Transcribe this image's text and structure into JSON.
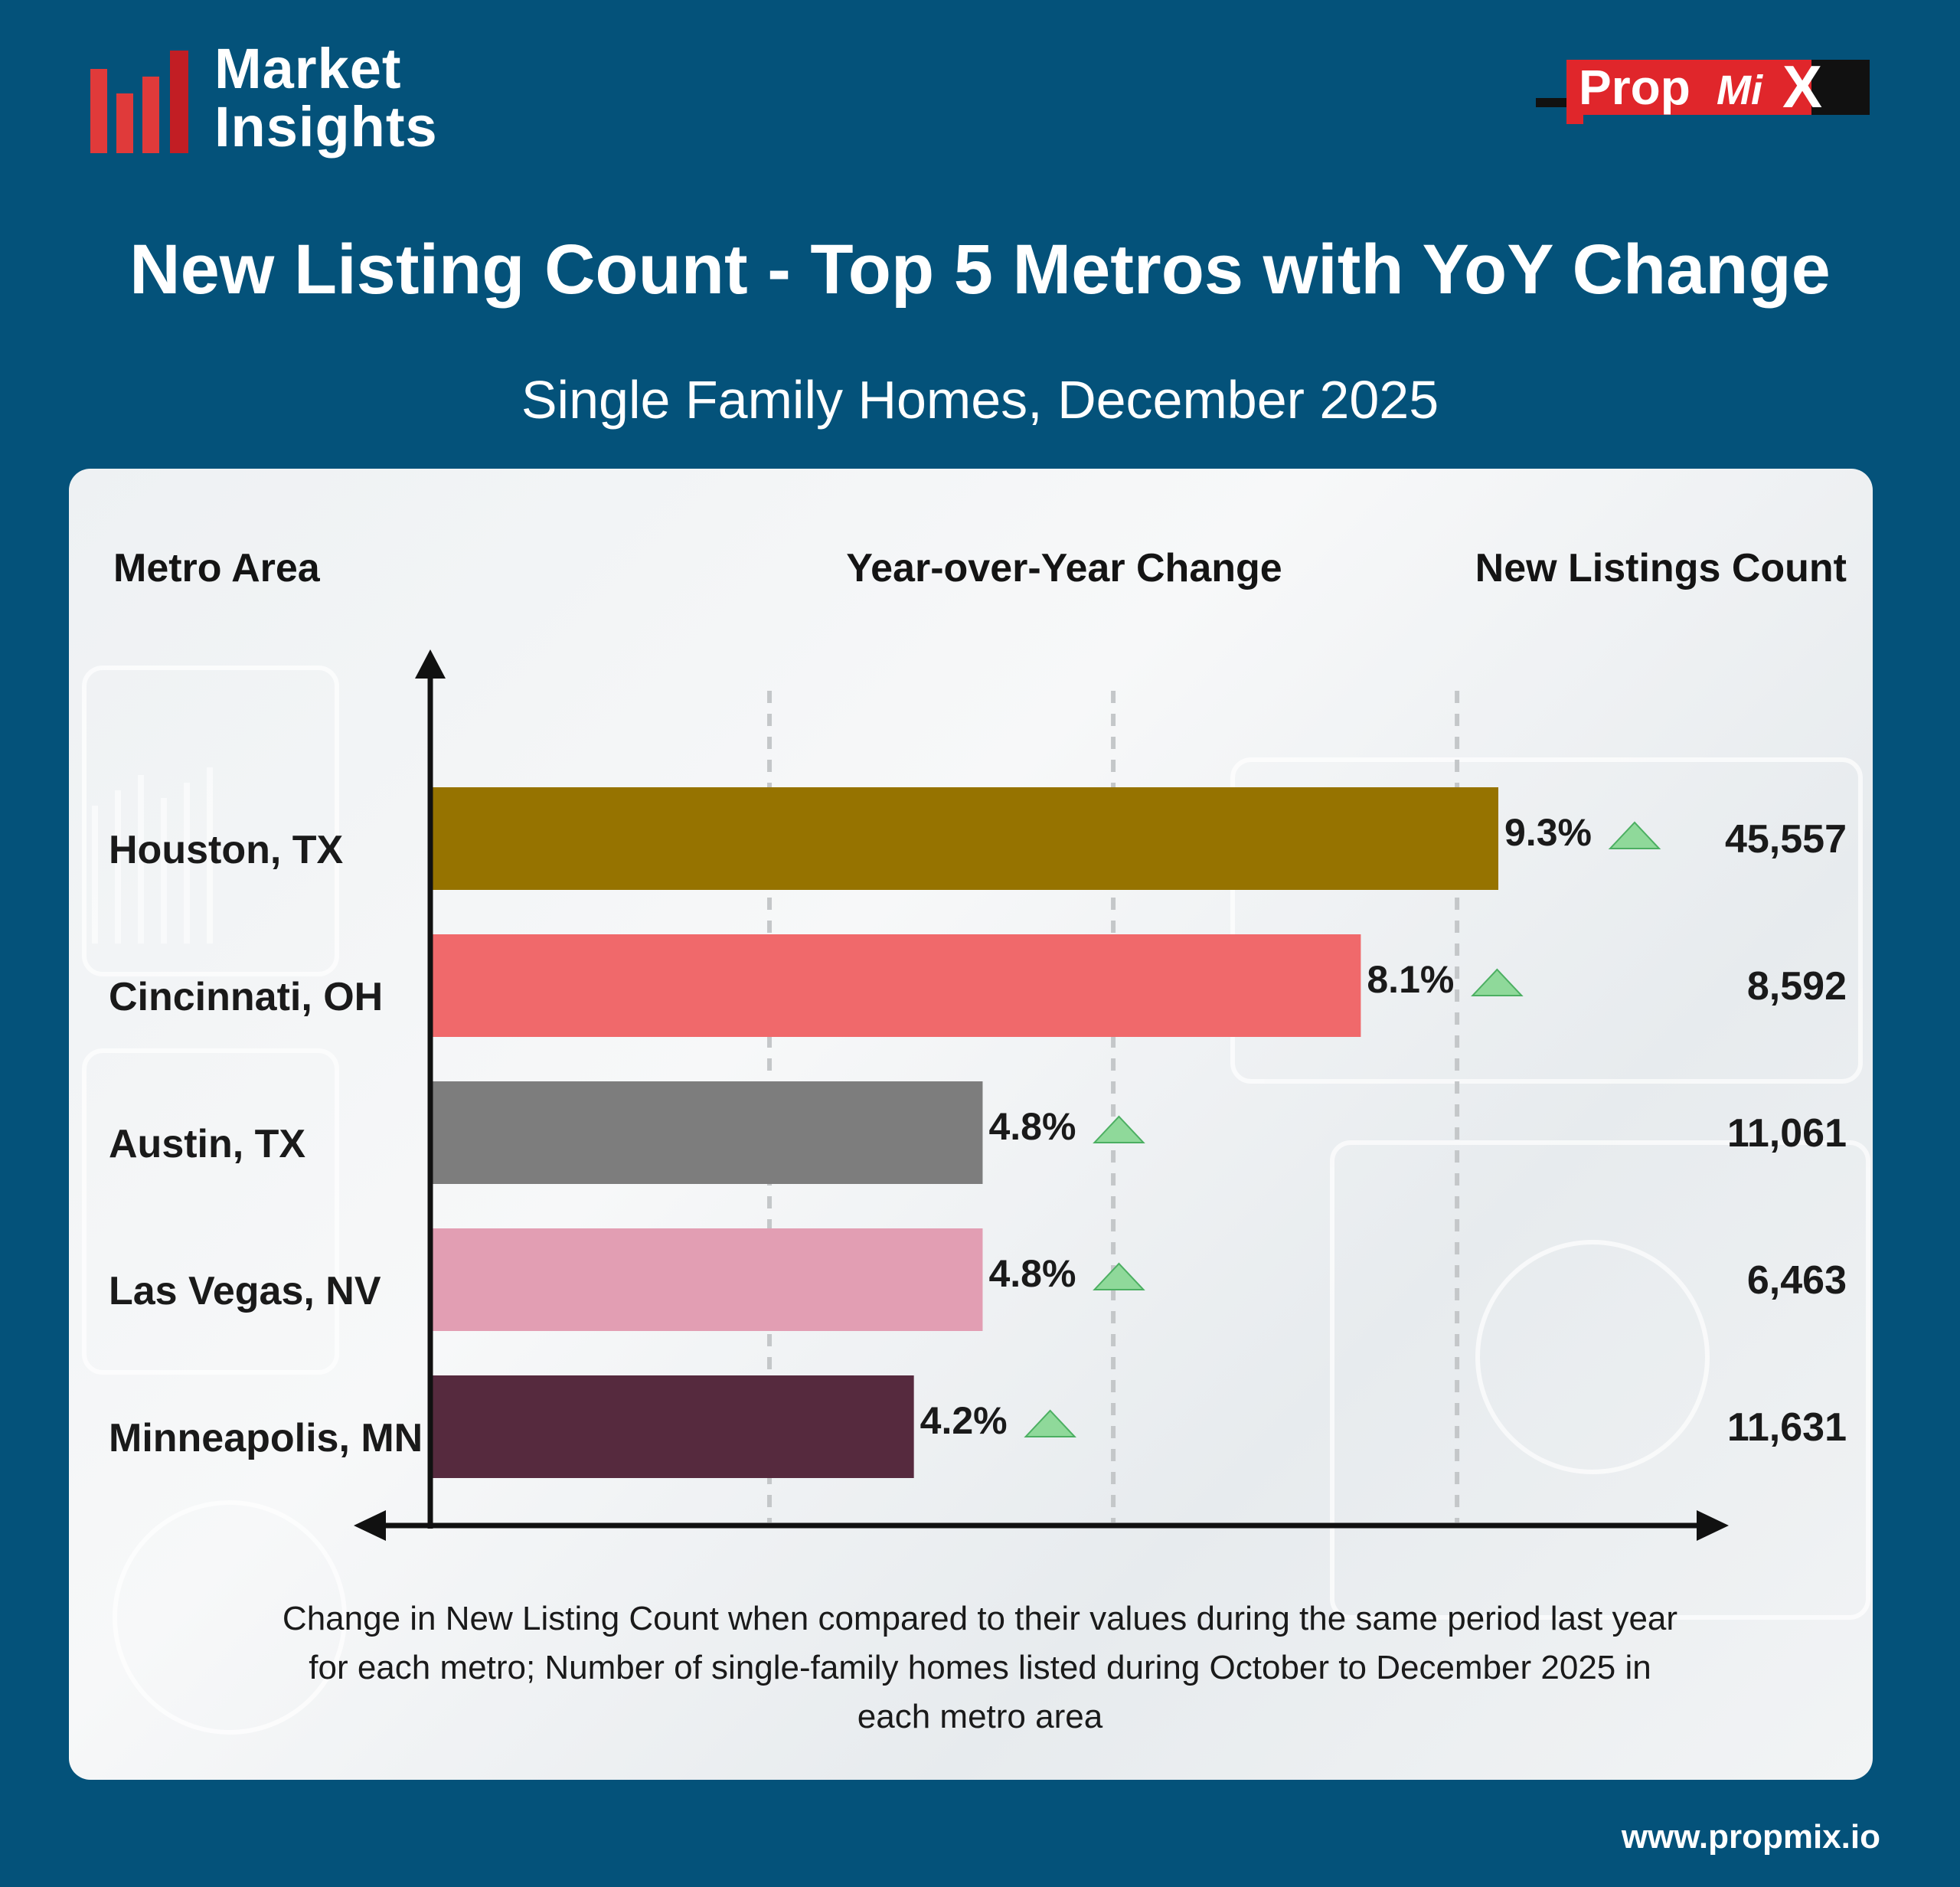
{
  "brand": {
    "line1": "Market",
    "line2": "Insights"
  },
  "logo": {
    "text_main": "Prop",
    "text_mid": "Mi",
    "text_end": "X"
  },
  "title": "New Listing Count - Top 5 Metros with YoY Change",
  "subtitle": "Single Family Homes, December 2025",
  "columns": {
    "metro": "Metro Area",
    "yoy": "Year-over-Year Change",
    "count": "New Listings Count"
  },
  "chart_data": {
    "type": "bar",
    "orientation": "horizontal",
    "categories": [
      "Houston, TX",
      "Cincinnati, OH",
      "Austin, TX",
      "Las Vegas, NV",
      "Minneapolis, MN"
    ],
    "values": [
      9.3,
      8.1,
      4.8,
      4.8,
      4.2
    ],
    "value_labels": [
      "9.3%",
      "8.1%",
      "4.8%",
      "4.8%",
      "4.2%"
    ],
    "counts": [
      "45,557",
      "8,592",
      "11,061",
      "6,463",
      "11,631"
    ],
    "colors": [
      "#967300",
      "#f0696b",
      "#7d7d7d",
      "#e29eb3",
      "#562a3e"
    ],
    "trend_color": "#8fd99a",
    "xlim": [
      0,
      10
    ],
    "gridlines": [
      3,
      6,
      9
    ],
    "grid": true
  },
  "footnote": "Change in New Listing Count when compared to their values during the same period last year for each metro; Number of single-family homes listed during October to December 2025 in each metro area",
  "website": "www.propmix.io",
  "colors": {
    "background": "#04527a",
    "brand_red": "#e02a2a",
    "logo_red": "#e0262b"
  }
}
